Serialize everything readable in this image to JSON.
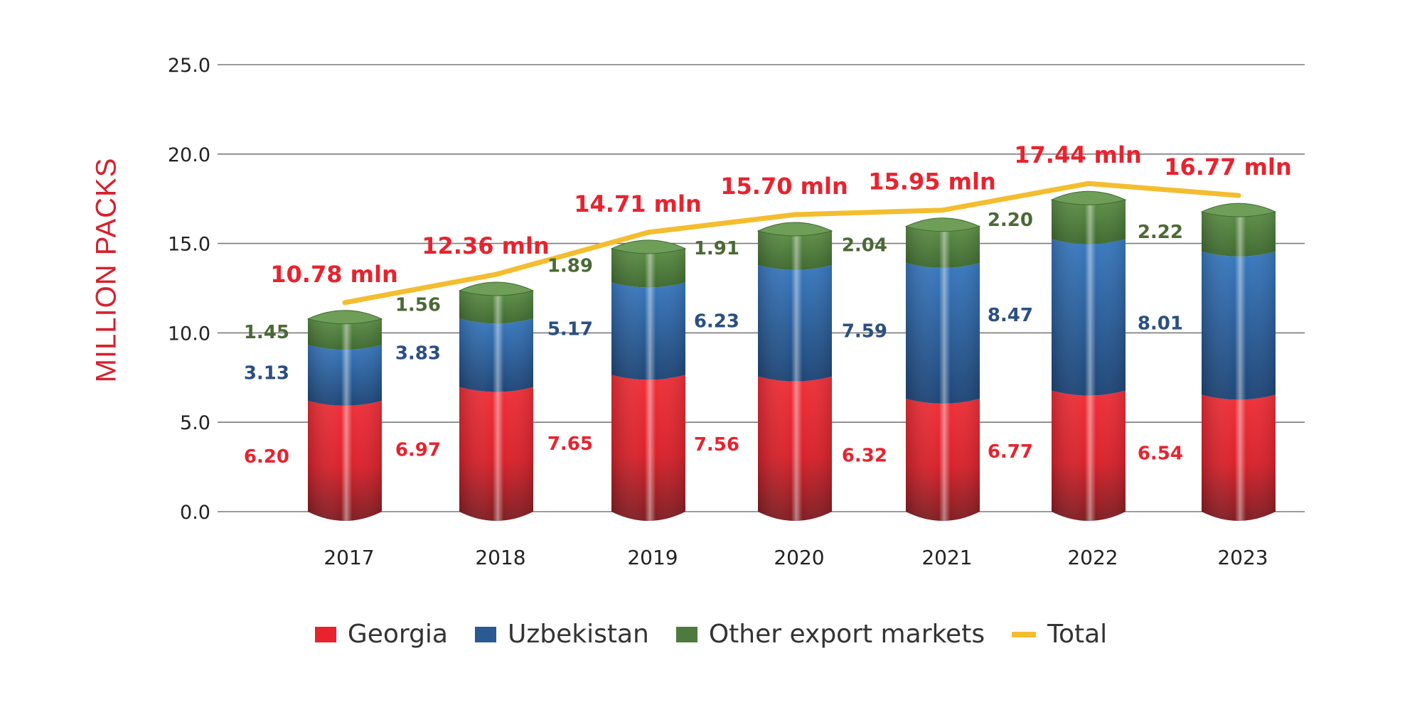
{
  "chart_data": {
    "type": "bar",
    "stacked": true,
    "title": "",
    "xlabel": "",
    "ylabel": "MILLION PACKS",
    "ylim": [
      0,
      25
    ],
    "yticks": [
      "0.0",
      "5.0",
      "10.0",
      "15.0",
      "20.0",
      "25.0"
    ],
    "ytick_values": [
      0,
      5,
      10,
      15,
      20,
      25
    ],
    "grid": true,
    "legend_position": "bottom",
    "categories": [
      "2017",
      "2018",
      "2019",
      "2020",
      "2021",
      "2022",
      "2023"
    ],
    "series": [
      {
        "name": "Georgia",
        "color": "#e8232e",
        "values": [
          6.2,
          6.97,
          7.65,
          7.56,
          6.32,
          6.77,
          6.54
        ],
        "labels": [
          "6.20",
          "6.97",
          "7.65",
          "7.56",
          "6.32",
          "6.77",
          "6.54"
        ]
      },
      {
        "name": "Uzbekistan",
        "color": "#2a5a93",
        "values": [
          3.13,
          3.83,
          5.17,
          6.23,
          7.59,
          8.47,
          8.01
        ],
        "labels": [
          "3.13",
          "3.83",
          "5.17",
          "6.23",
          "7.59",
          "8.47",
          "8.01"
        ]
      },
      {
        "name": "Other export markets",
        "color": "#4e7a3e",
        "values": [
          1.45,
          1.56,
          1.89,
          1.91,
          2.04,
          2.2,
          2.22
        ],
        "labels": [
          "1.45",
          "1.56",
          "1.89",
          "1.91",
          "2.04",
          "2.20",
          "2.22"
        ]
      },
      {
        "name": "Total",
        "type": "line",
        "color": "#f3bd2e",
        "values": [
          10.78,
          12.36,
          14.71,
          15.7,
          15.95,
          17.44,
          16.77
        ],
        "labels": [
          "10.78 mln",
          "12.36 mln",
          "14.71 mln",
          "15.70 mln",
          "15.95 mln",
          "17.44 mln",
          "16.77 mln"
        ]
      }
    ],
    "label_colors": {
      "georgia": "#e8232e",
      "uzbekistan": "#2a4f82",
      "other": "#4a6a35",
      "total": "#e8232e"
    }
  }
}
